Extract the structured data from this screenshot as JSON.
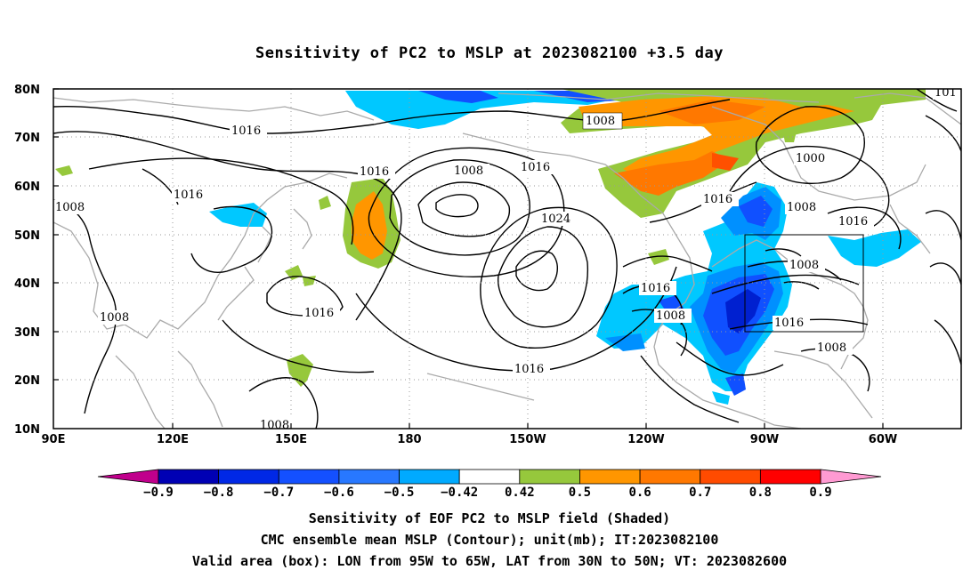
{
  "title": "Sensitivity of PC2 to MSLP at 2023082100 +3.5 day",
  "map": {
    "lat_labels": [
      "80N",
      "70N",
      "60N",
      "50N",
      "40N",
      "30N",
      "20N",
      "10N"
    ],
    "lon_labels": [
      "90E",
      "120E",
      "150E",
      "180",
      "150W",
      "120W",
      "90W",
      "60W"
    ],
    "contour_labels": [
      "1008",
      "1016",
      "1016",
      "1016",
      "1008",
      "1008",
      "1016",
      "1024",
      "1016",
      "1016",
      "1016",
      "1008",
      "1016",
      "1016",
      "1008",
      "1008",
      "1016",
      "1000",
      "1008",
      "1016",
      "1008",
      "101",
      "1008"
    ],
    "valid_box": {
      "lon_from": "95W",
      "lon_to": "65W",
      "lat_from": "30N",
      "lat_to": "50N"
    },
    "colors": {
      "neg_0.9": "#c0008c",
      "neg_0.8": "#0000a0",
      "neg_0.7": "#0020d0",
      "neg_0.6": "#1050ff",
      "neg_0.5": "#0090ff",
      "neg_0.42": "#00c8ff",
      "neutral": "#ffffff",
      "pos_0.42": "#96c83c",
      "pos_0.5": "#ff9600",
      "pos_0.6": "#ff7800",
      "pos_0.7": "#ff5000",
      "pos_0.8": "#ff0000",
      "pos_0.9": "#ff9ad2"
    }
  },
  "colorbar": {
    "labels": [
      "−0.9",
      "−0.8",
      "−0.7",
      "−0.6",
      "−0.5",
      "−0.42",
      "0.42",
      "0.5",
      "0.6",
      "0.7",
      "0.8",
      "0.9"
    ],
    "colors": [
      "#0000b4",
      "#0028e6",
      "#1450ff",
      "#2878ff",
      "#00aaff",
      "#ffffff",
      "#96c83c",
      "#ff9600",
      "#ff7800",
      "#ff4b00",
      "#ff0000"
    ],
    "end_left": "#c0008c",
    "end_right": "#ff9ad2"
  },
  "footer": {
    "line1": "Sensitivity of EOF PC2 to MSLP field (Shaded)",
    "line2": "CMC ensemble mean MSLP (Contour); unit(mb); IT:2023082100",
    "line3": "Valid area (box): LON from 95W to 65W, LAT from 30N to 50N; VT: 2023082600"
  }
}
